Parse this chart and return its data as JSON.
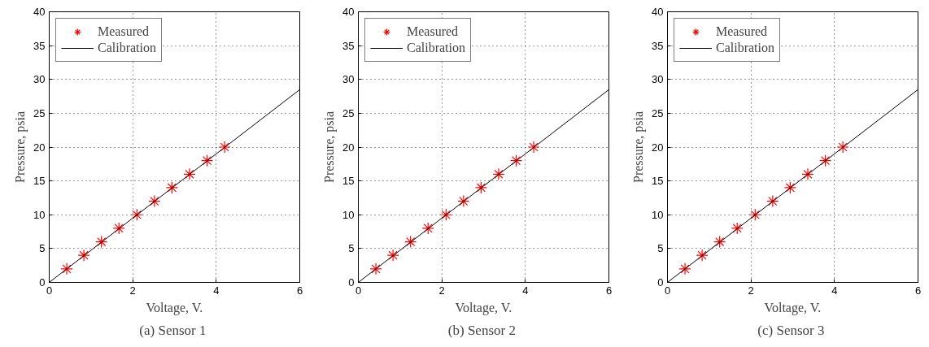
{
  "chart_data": [
    {
      "type": "scatter",
      "title": "(a)  Sensor 1",
      "xlabel": "Voltage, V.",
      "ylabel": "Pressure, psia",
      "xlim": [
        0,
        6
      ],
      "ylim": [
        0,
        40
      ],
      "xticks": [
        0,
        2,
        4,
        6
      ],
      "yticks": [
        0,
        5,
        10,
        15,
        20,
        25,
        30,
        35,
        40
      ],
      "grid": true,
      "legend": "top left",
      "series": [
        {
          "name": "Measured",
          "marker": "cross",
          "color": "#ff0000",
          "x": [
            0.42,
            0.83,
            1.25,
            1.67,
            2.1,
            2.52,
            2.94,
            3.36,
            3.78,
            4.2
          ],
          "values": [
            2,
            4,
            6,
            8,
            10,
            12,
            14,
            16,
            18,
            20
          ]
        },
        {
          "name": "Calibration",
          "type": "line",
          "line_style": "solid",
          "color": "#000000",
          "x": [
            0,
            6
          ],
          "values": [
            0,
            28.5
          ]
        }
      ]
    },
    {
      "type": "scatter",
      "title": "(b)  Sensor 2",
      "xlabel": "Voltage, V.",
      "ylabel": "Pressure, psia",
      "xlim": [
        0,
        6
      ],
      "ylim": [
        0,
        40
      ],
      "xticks": [
        0,
        2,
        4,
        6
      ],
      "yticks": [
        0,
        5,
        10,
        15,
        20,
        25,
        30,
        35,
        40
      ],
      "grid": true,
      "legend": "top left",
      "series": [
        {
          "name": "Measured",
          "marker": "cross",
          "color": "#ff0000",
          "x": [
            0.42,
            0.83,
            1.25,
            1.67,
            2.1,
            2.52,
            2.94,
            3.36,
            3.78,
            4.2
          ],
          "values": [
            2,
            4,
            6,
            8,
            10,
            12,
            14,
            16,
            18,
            20
          ]
        },
        {
          "name": "Calibration",
          "type": "line",
          "line_style": "solid",
          "color": "#000000",
          "x": [
            0,
            6
          ],
          "values": [
            0,
            28.5
          ]
        }
      ]
    },
    {
      "type": "scatter",
      "title": "(c)  Sensor 3",
      "xlabel": "Voltage, V.",
      "ylabel": "Pressure, psia",
      "xlim": [
        0,
        6
      ],
      "ylim": [
        0,
        40
      ],
      "xticks": [
        0,
        2,
        4,
        6
      ],
      "yticks": [
        0,
        5,
        10,
        15,
        20,
        25,
        30,
        35,
        40
      ],
      "grid": true,
      "legend": "top left",
      "series": [
        {
          "name": "Measured",
          "marker": "cross",
          "color": "#ff0000",
          "x": [
            0.42,
            0.83,
            1.25,
            1.67,
            2.1,
            2.52,
            2.94,
            3.36,
            3.78,
            4.2
          ],
          "values": [
            2,
            4,
            6,
            8,
            10,
            12,
            14,
            16,
            18,
            20
          ]
        },
        {
          "name": "Calibration",
          "type": "line",
          "line_style": "solid",
          "color": "#000000",
          "x": [
            0,
            6
          ],
          "values": [
            0,
            28.5
          ]
        }
      ]
    }
  ]
}
